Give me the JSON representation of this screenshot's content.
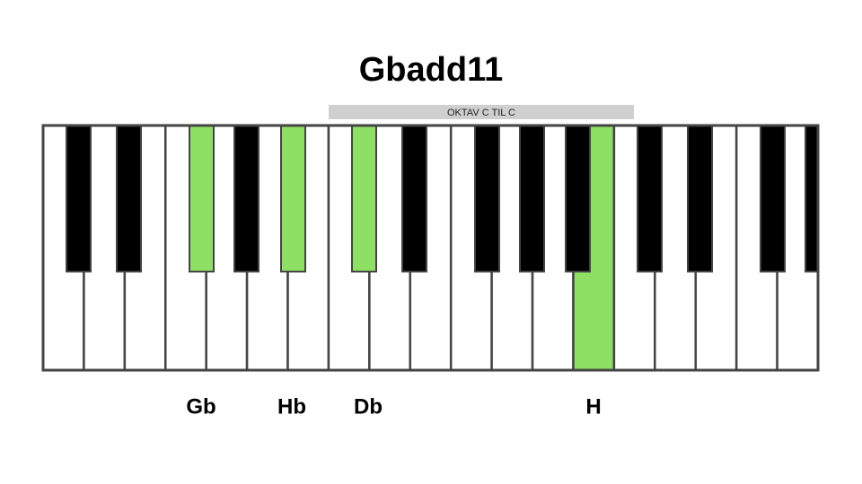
{
  "title": "Gbadd11",
  "octave_label": "OKTAV C TIL C",
  "note_labels": [
    "Gb",
    "Hb",
    "Db",
    "H"
  ]
}
